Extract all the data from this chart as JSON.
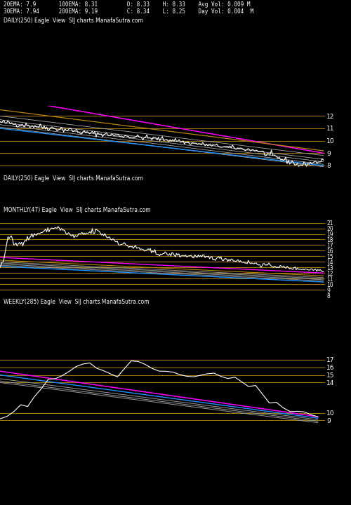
{
  "bg_color": "#000000",
  "text_color": "#ffffff",
  "header_text_line1": "20EMA: 7.9       100EMA: 8.31         O: 8.33    H: 8.33    Avg Vol: 0.009 M",
  "header_text_line2": "30EMA: 7.94      200EMA: 9.19         C: 8.34    L: 8.25    Day Vol: 0.004  M",
  "panel1_label": "DAILY(250) Eagle  View  SIJ charts.ManafaSutra.com",
  "panel2_label": "WEEKLY(285) Eagle  View  SIJ charts.ManafaSutra.com",
  "panel3_label": "MONTHLY(47) Eagle  View  SIJ charts.ManafaSutra.com",
  "panel1_ylevels": [
    12,
    11,
    10,
    9,
    8
  ],
  "panel2_ylevels": [
    21,
    20,
    19,
    18,
    17,
    16,
    15,
    14,
    13,
    12,
    11,
    10,
    9,
    8
  ],
  "panel3_ylevels": [
    17,
    16,
    15,
    14,
    10,
    9
  ],
  "orange_color": "#b8860b",
  "magenta_color": "#ff00ff",
  "blue_color": "#1e90ff",
  "white_color": "#ffffff"
}
